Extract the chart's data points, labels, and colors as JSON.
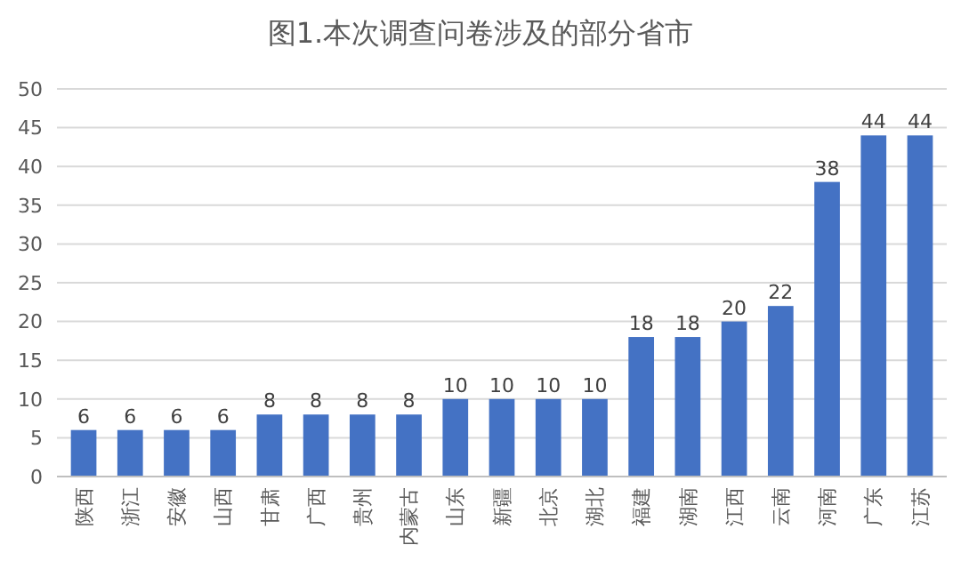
{
  "chart_data": {
    "type": "bar",
    "title": "图1.本次调查问卷涉及的部分省市",
    "categories": [
      "陕西",
      "浙江",
      "安徽",
      "山西",
      "甘肃",
      "广西",
      "贵州",
      "内蒙古",
      "山东",
      "新疆",
      "北京",
      "湖北",
      "福建",
      "湖南",
      "江西",
      "云南",
      "河南",
      "广东",
      "江苏"
    ],
    "values": [
      6,
      6,
      6,
      6,
      8,
      8,
      8,
      8,
      10,
      10,
      10,
      10,
      18,
      18,
      20,
      22,
      38,
      44,
      44
    ],
    "color": "#4472c4",
    "ylim": [
      0,
      50
    ],
    "yticks": [
      0,
      5,
      10,
      15,
      20,
      25,
      30,
      35,
      40,
      45,
      50
    ],
    "grid": "y",
    "data_labels": true
  }
}
